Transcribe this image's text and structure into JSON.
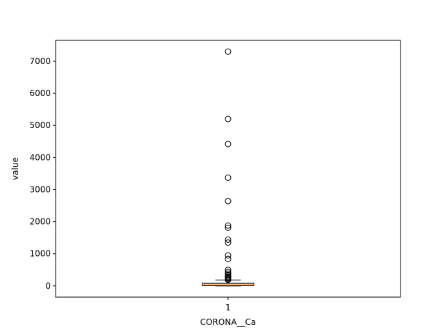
{
  "chart_data": {
    "type": "boxplot",
    "title": "",
    "xlabel": "CORONA__Ca",
    "ylabel": "value",
    "categories": [
      "1"
    ],
    "ylim": [
      -350,
      7650
    ],
    "yticks": [
      0,
      1000,
      2000,
      3000,
      4000,
      5000,
      6000,
      7000
    ],
    "grid": false,
    "box": {
      "whisker_low": 0,
      "q1": 8,
      "median": 30,
      "q3": 80,
      "whisker_high": 185
    },
    "outliers": [
      7300,
      5200,
      4420,
      3370,
      2640,
      1880,
      1810,
      1440,
      1350,
      950,
      840,
      500,
      430,
      380,
      340,
      300,
      270,
      240,
      210,
      190
    ],
    "colors": {
      "median": "#ff7f0e",
      "box_edge": "#000000",
      "outlier_edge": "#000000"
    }
  }
}
